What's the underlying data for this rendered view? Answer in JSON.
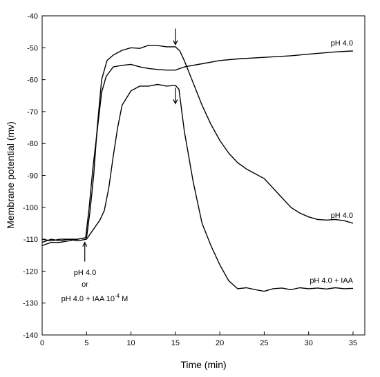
{
  "chart_data": {
    "type": "line",
    "title": "",
    "xlabel": "Time (min)",
    "ylabel": "Membrane potential (mv)",
    "xlim": [
      0,
      36
    ],
    "ylim": [
      -140,
      -40
    ],
    "x_ticks": [
      0,
      5,
      10,
      15,
      20,
      25,
      30,
      35
    ],
    "y_ticks": [
      -40,
      -50,
      -60,
      -70,
      -80,
      -90,
      -100,
      -110,
      -120,
      -130,
      -140
    ],
    "grid": false,
    "line_color": "#000000",
    "series": [
      {
        "label": "pH 4.0",
        "points": [
          [
            0,
            -110
          ],
          [
            1,
            -110.5
          ],
          [
            2,
            -110
          ],
          [
            3,
            -110
          ],
          [
            4,
            -110
          ],
          [
            4.9,
            -109.5
          ],
          [
            5.3,
            -100
          ],
          [
            5.7,
            -88
          ],
          [
            6.2,
            -76
          ],
          [
            6.7,
            -64
          ],
          [
            7.2,
            -59
          ],
          [
            8,
            -56
          ],
          [
            9,
            -55.5
          ],
          [
            10,
            -55.2
          ],
          [
            11,
            -56
          ],
          [
            12,
            -56.5
          ],
          [
            13,
            -56.8
          ],
          [
            14,
            -57
          ],
          [
            15,
            -57
          ],
          [
            16,
            -56
          ],
          [
            18,
            -55
          ],
          [
            20,
            -54
          ],
          [
            22,
            -53.5
          ],
          [
            25,
            -53
          ],
          [
            28,
            -52.5
          ],
          [
            30,
            -52
          ],
          [
            33,
            -51.3
          ],
          [
            35,
            -51
          ]
        ]
      },
      {
        "label": "pH 4.0",
        "points": [
          [
            0,
            -112
          ],
          [
            1,
            -111
          ],
          [
            2,
            -111
          ],
          [
            3,
            -110.5
          ],
          [
            4,
            -110
          ],
          [
            5,
            -109.5
          ],
          [
            5.4,
            -101
          ],
          [
            5.8,
            -90
          ],
          [
            6.2,
            -75
          ],
          [
            6.7,
            -60
          ],
          [
            7.3,
            -54
          ],
          [
            8,
            -52.3
          ],
          [
            9,
            -50.8
          ],
          [
            10,
            -50
          ],
          [
            11,
            -50.2
          ],
          [
            12,
            -49.2
          ],
          [
            13,
            -49.3
          ],
          [
            14,
            -49.7
          ],
          [
            15,
            -49.7
          ],
          [
            15.5,
            -51
          ],
          [
            16,
            -54
          ],
          [
            17,
            -61
          ],
          [
            18,
            -68
          ],
          [
            19,
            -74
          ],
          [
            20,
            -79
          ],
          [
            21,
            -83
          ],
          [
            22,
            -86
          ],
          [
            23,
            -88
          ],
          [
            24,
            -89.5
          ],
          [
            25,
            -91
          ],
          [
            26,
            -94
          ],
          [
            27,
            -97
          ],
          [
            28,
            -100
          ],
          [
            29,
            -101.8
          ],
          [
            30,
            -103
          ],
          [
            31,
            -103.8
          ],
          [
            32,
            -104
          ],
          [
            33,
            -103.8
          ],
          [
            34,
            -104.2
          ],
          [
            35,
            -105
          ]
        ]
      },
      {
        "label": "pH 4.0 + IAA",
        "points": [
          [
            0,
            -111
          ],
          [
            1,
            -110
          ],
          [
            2,
            -110.5
          ],
          [
            3,
            -110
          ],
          [
            4,
            -110.5
          ],
          [
            5,
            -110
          ],
          [
            5.5,
            -108
          ],
          [
            6,
            -106
          ],
          [
            6.5,
            -104
          ],
          [
            7,
            -101
          ],
          [
            7.5,
            -94
          ],
          [
            8,
            -84
          ],
          [
            8.5,
            -75
          ],
          [
            9,
            -68
          ],
          [
            10,
            -63.5
          ],
          [
            11,
            -62
          ],
          [
            12,
            -62
          ],
          [
            13,
            -61.5
          ],
          [
            14,
            -62
          ],
          [
            15,
            -61.8
          ],
          [
            15.4,
            -63
          ],
          [
            16,
            -76
          ],
          [
            17,
            -92
          ],
          [
            18,
            -105
          ],
          [
            19,
            -112
          ],
          [
            20,
            -118
          ],
          [
            21,
            -123
          ],
          [
            22,
            -125.5
          ],
          [
            23,
            -125.2
          ],
          [
            24,
            -125.8
          ],
          [
            25,
            -126.3
          ],
          [
            26,
            -125.5
          ],
          [
            27,
            -125.3
          ],
          [
            28,
            -125.8
          ],
          [
            29,
            -125.2
          ],
          [
            30,
            -125.5
          ],
          [
            31,
            -125.3
          ],
          [
            32,
            -125.6
          ],
          [
            33,
            -125.2
          ],
          [
            34,
            -125.5
          ],
          [
            35,
            -125.4
          ]
        ]
      }
    ],
    "annotations": {
      "start": {
        "line1": "pH 4.0",
        "line2": "or",
        "line3_main": "pH 4.0 + IAA 10",
        "line3_sup": "-4",
        "line3_tail": " M"
      },
      "arrows": [
        {
          "kind": "down",
          "x": 15,
          "y": -44,
          "y2": -49
        },
        {
          "kind": "down",
          "x": 15,
          "y": -62.5,
          "y2": -67.5
        },
        {
          "kind": "up",
          "x": 4.8,
          "y": -117,
          "y2": -111
        }
      ]
    }
  }
}
